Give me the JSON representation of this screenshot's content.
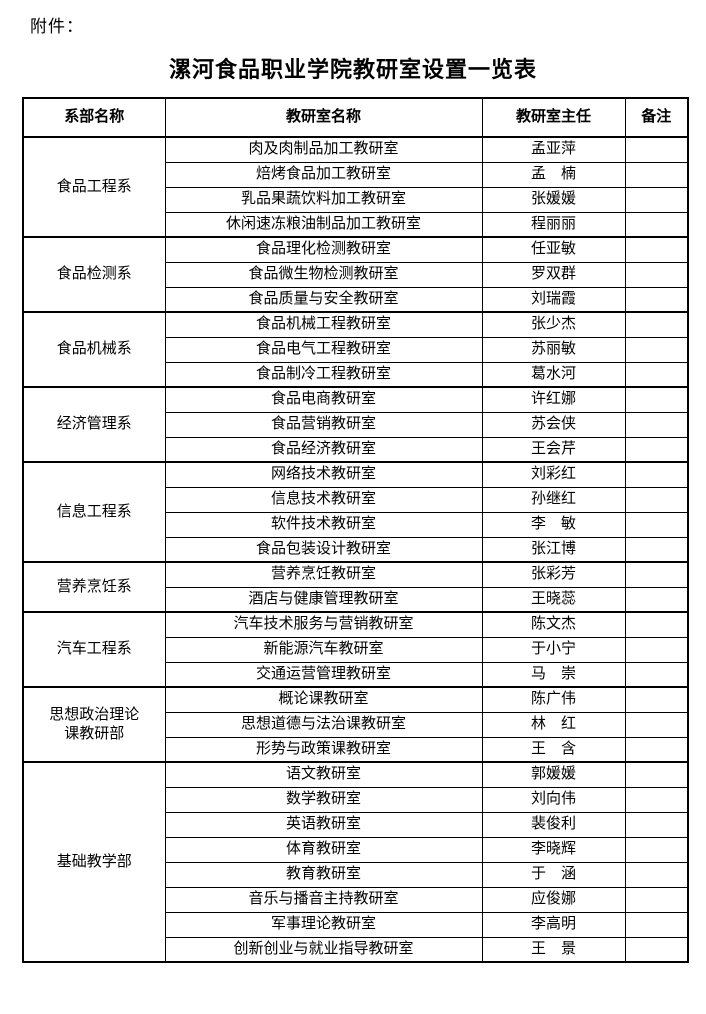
{
  "page": {
    "attachment_label": "附件：",
    "title": "漯河食品职业学院教研室设置一览表"
  },
  "table": {
    "headers": [
      "系部名称",
      "教研室名称",
      "教研室主任",
      "备注"
    ],
    "sections": [
      {
        "department": "食品工程系",
        "rows": [
          {
            "office": "肉及肉制品加工教研室",
            "director": "孟亚萍"
          },
          {
            "office": "焙烤食品加工教研室",
            "director": "孟　楠"
          },
          {
            "office": "乳品果蔬饮料加工教研室",
            "director": "张媛媛"
          },
          {
            "office": "休闲速冻粮油制品加工教研室",
            "director": "程丽丽"
          }
        ]
      },
      {
        "department": "食品检测系",
        "rows": [
          {
            "office": "食品理化检测教研室",
            "director": "任亚敏"
          },
          {
            "office": "食品微生物检测教研室",
            "director": "罗双群"
          },
          {
            "office": "食品质量与安全教研室",
            "director": "刘瑞霞"
          }
        ]
      },
      {
        "department": "食品机械系",
        "rows": [
          {
            "office": "食品机械工程教研室",
            "director": "张少杰"
          },
          {
            "office": "食品电气工程教研室",
            "director": "苏丽敏"
          },
          {
            "office": "食品制冷工程教研室",
            "director": "葛水河"
          }
        ]
      },
      {
        "department": "经济管理系",
        "rows": [
          {
            "office": "食品电商教研室",
            "director": "许红娜"
          },
          {
            "office": "食品营销教研室",
            "director": "苏会侠"
          },
          {
            "office": "食品经济教研室",
            "director": "王会芹"
          }
        ]
      },
      {
        "department": "信息工程系",
        "rows": [
          {
            "office": "网络技术教研室",
            "director": "刘彩红"
          },
          {
            "office": "信息技术教研室",
            "director": "孙继红"
          },
          {
            "office": "软件技术教研室",
            "director": "李　敏"
          },
          {
            "office": "食品包装设计教研室",
            "director": "张江博"
          }
        ]
      },
      {
        "department": "营养烹饪系",
        "rows": [
          {
            "office": "营养烹饪教研室",
            "director": "张彩芳"
          },
          {
            "office": "酒店与健康管理教研室",
            "director": "王晓蕊"
          }
        ]
      },
      {
        "department": "汽车工程系",
        "rows": [
          {
            "office": "汽车技术服务与营销教研室",
            "director": "陈文杰"
          },
          {
            "office": "新能源汽车教研室",
            "director": "于小宁"
          },
          {
            "office": "交通运营管理教研室",
            "director": "马　崇"
          }
        ]
      },
      {
        "department": "思想政治理论课教研部",
        "rows": [
          {
            "office": "概论课教研室",
            "director": "陈广伟"
          },
          {
            "office": "思想道德与法治课教研室",
            "director": "林　红"
          },
          {
            "office": "形势与政策课教研室",
            "director": "王　含"
          }
        ]
      },
      {
        "department": "基础教学部",
        "rows": [
          {
            "office": "语文教研室",
            "director": "郭媛媛"
          },
          {
            "office": "数学教研室",
            "director": "刘向伟"
          },
          {
            "office": "英语教研室",
            "director": "裴俊利"
          },
          {
            "office": "体育教研室",
            "director": "李晓辉"
          },
          {
            "office": "教育教研室",
            "director": "于　涵"
          },
          {
            "office": "音乐与播音主持教研室",
            "director": "应俊娜"
          },
          {
            "office": "军事理论教研室",
            "director": "李高明"
          },
          {
            "office": "创新创业与就业指导教研室",
            "director": "王　景"
          }
        ]
      }
    ]
  }
}
